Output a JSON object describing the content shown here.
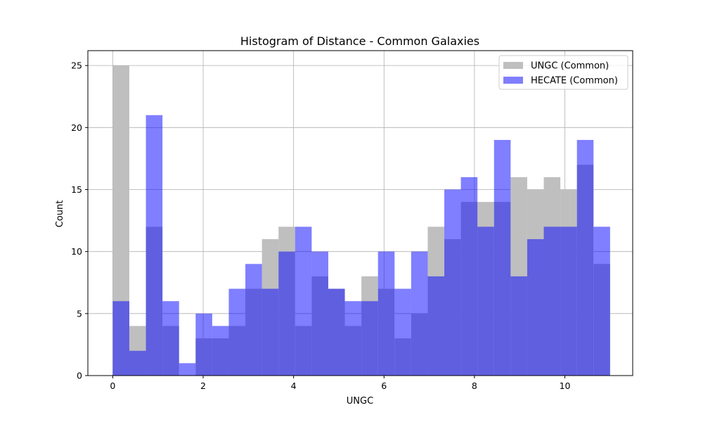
{
  "chart_data": {
    "type": "bar",
    "title": "Histogram of Distance - Common Galaxies",
    "xlabel": "UNGC",
    "ylabel": "Count",
    "xlim": [
      -0.55,
      11.5
    ],
    "ylim": [
      0,
      26.2
    ],
    "xticks": [
      0,
      2,
      4,
      6,
      8,
      10
    ],
    "yticks": [
      0,
      5,
      10,
      15,
      20,
      25
    ],
    "grid": true,
    "legend_position": "top-right",
    "series": [
      {
        "name": "UNGC (Common)",
        "color": "#bfbfbf",
        "bin_edges": [
          0.0,
          0.3667,
          0.7333,
          1.1,
          1.4667,
          1.8333,
          2.2,
          2.5667,
          2.9333,
          3.3,
          3.6667,
          4.0333,
          4.4,
          4.7667,
          5.1333,
          5.5,
          5.8667,
          6.2333,
          6.6,
          6.9667,
          7.3333,
          7.7,
          8.0667,
          8.4333,
          8.8,
          9.1667,
          9.5333,
          9.9,
          10.2667,
          10.6333,
          11.0
        ],
        "counts": [
          25,
          4,
          12,
          4,
          0,
          3,
          3,
          4,
          7,
          11,
          12,
          4,
          8,
          7,
          4,
          8,
          7,
          3,
          5,
          12,
          11,
          14,
          14,
          14,
          16,
          15,
          16,
          15,
          17,
          9
        ]
      },
      {
        "name": "HECATE (Common)",
        "color": "#0000ff",
        "opacity": 0.5,
        "bin_edges": [
          0.0,
          0.3667,
          0.7333,
          1.1,
          1.4667,
          1.8333,
          2.2,
          2.5667,
          2.9333,
          3.3,
          3.6667,
          4.0333,
          4.4,
          4.7667,
          5.1333,
          5.5,
          5.8667,
          6.2333,
          6.6,
          6.9667,
          7.3333,
          7.7,
          8.0667,
          8.4333,
          8.8,
          9.1667,
          9.5333,
          9.9,
          10.2667,
          10.6333,
          11.0
        ],
        "counts": [
          6,
          2,
          21,
          6,
          1,
          5,
          4,
          7,
          9,
          7,
          10,
          12,
          10,
          7,
          6,
          6,
          10,
          7,
          10,
          8,
          15,
          16,
          12,
          19,
          8,
          11,
          12,
          12,
          19,
          12
        ]
      }
    ]
  }
}
